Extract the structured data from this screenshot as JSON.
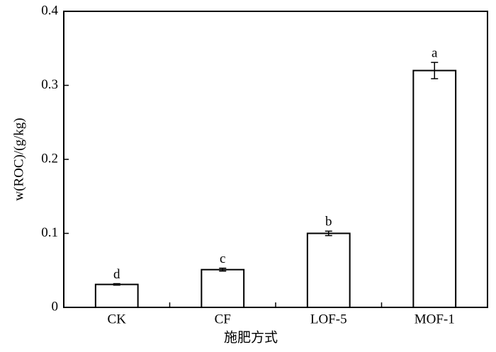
{
  "chart_data": {
    "type": "bar",
    "x_label": "施肥方式",
    "y_label": "w(ROC)/(g/kg)",
    "categories": [
      "CK",
      "CF",
      "LOF-5",
      "MOF-1"
    ],
    "values": [
      0.031,
      0.051,
      0.1,
      0.32
    ],
    "errors": [
      0.001,
      0.002,
      0.003,
      0.011
    ],
    "significance_labels": [
      "d",
      "c",
      "b",
      "a"
    ],
    "color": "#ffffff",
    "ylim": [
      0,
      0.4
    ],
    "yticks": [
      0,
      0.1,
      0.2,
      0.3,
      0.4
    ]
  }
}
